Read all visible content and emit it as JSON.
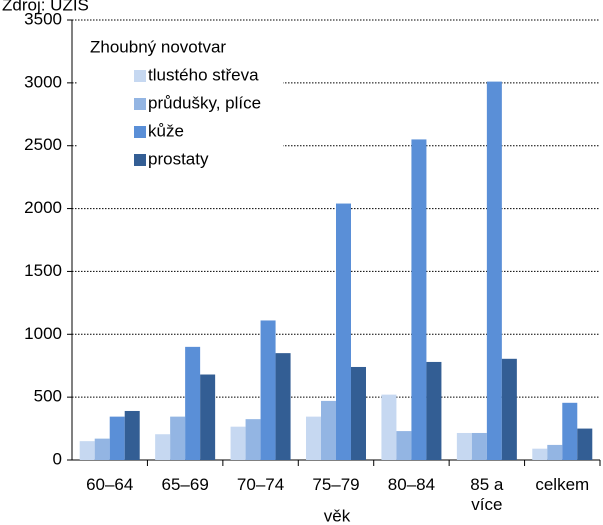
{
  "chart_data": {
    "type": "bar",
    "subtitle": "Zdroj: ÚZIS",
    "xlabel": "věk",
    "legend_title": "Zhoubný novotvar",
    "categories": [
      "60–64",
      "65–69",
      "70–74",
      "75–79",
      "80–84",
      "85 a\nvíce",
      "celkem"
    ],
    "series": [
      {
        "name": "tlustého střeva",
        "color": "#c6d8f1",
        "values": [
          150,
          205,
          265,
          345,
          520,
          215,
          90
        ]
      },
      {
        "name": "průdušky, plíce",
        "color": "#93b5e3",
        "values": [
          170,
          345,
          325,
          470,
          230,
          215,
          120
        ]
      },
      {
        "name": "kůže",
        "color": "#5a8fd7",
        "values": [
          345,
          900,
          1110,
          2040,
          2550,
          3010,
          455
        ]
      },
      {
        "name": "prostaty",
        "color": "#335e94",
        "values": [
          390,
          680,
          850,
          740,
          780,
          805,
          250
        ]
      }
    ],
    "ylim": [
      0,
      3500
    ],
    "yticks": [
      0,
      500,
      1000,
      1500,
      2000,
      2500,
      3000,
      3500
    ],
    "grid": true
  }
}
